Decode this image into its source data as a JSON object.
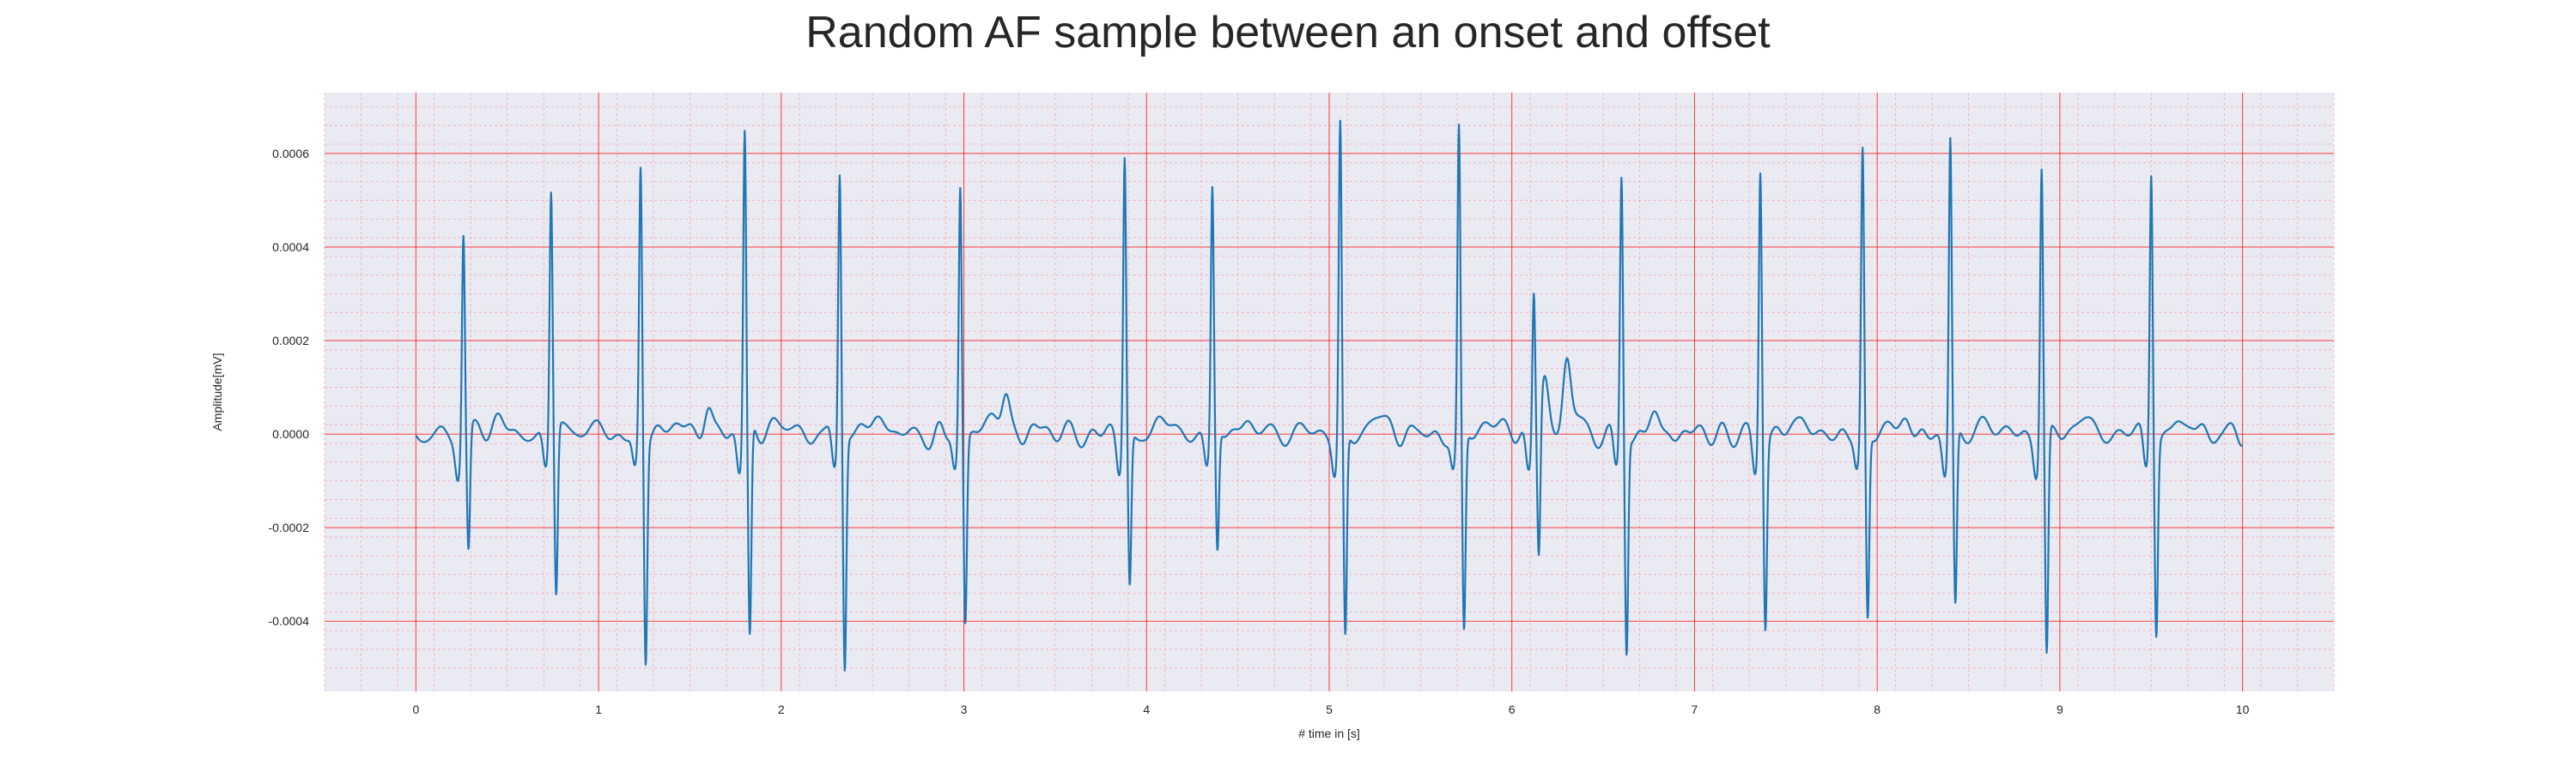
{
  "chart_data": {
    "type": "line",
    "title": "Random AF sample between an onset and offset",
    "xlabel": "# time in [s]",
    "ylabel": "Amplitude[mV]",
    "xlim": [
      -0.5,
      10.5
    ],
    "ylim": [
      -0.00055,
      0.00073
    ],
    "xticks": [
      0,
      1,
      2,
      3,
      4,
      5,
      6,
      7,
      8,
      9,
      10
    ],
    "xtick_labels": [
      "0",
      "1",
      "2",
      "3",
      "4",
      "5",
      "6",
      "7",
      "8",
      "9",
      "10"
    ],
    "yticks": [
      -0.0004,
      -0.0002,
      0.0,
      0.0002,
      0.0004,
      0.0006
    ],
    "ytick_labels": [
      "-0.0004",
      "-0.0002",
      "0.0000",
      "0.0002",
      "0.0004",
      "0.0006"
    ],
    "grid": true,
    "minor_grid": true,
    "colors": {
      "plot_background": "#eaeaf2",
      "major_grid": "#ff0000",
      "minor_grid": "#f4a8b4",
      "line": "#1f77b4"
    },
    "series": [
      {
        "values_note": "beats",
        "beats": [
          {
            "t": 0.26,
            "peak": 0.00044,
            "trough": -0.00026
          },
          {
            "t": 0.74,
            "peak": 0.00052,
            "trough": -0.00036
          },
          {
            "t": 1.23,
            "peak": 0.00057,
            "trough": -0.00048
          },
          {
            "t": 1.8,
            "peak": 0.00066,
            "trough": -0.00045
          },
          {
            "t": 2.32,
            "peak": 0.00058,
            "trough": -0.00049
          },
          {
            "t": 2.98,
            "peak": 0.00055,
            "trough": -0.00039
          },
          {
            "t": 3.88,
            "peak": 0.0006,
            "trough": -0.00033
          },
          {
            "t": 4.36,
            "peak": 0.00052,
            "trough": -0.00026
          },
          {
            "t": 5.06,
            "peak": 0.00067,
            "trough": -0.00044
          },
          {
            "t": 5.71,
            "peak": 0.00065,
            "trough": -0.00043
          },
          {
            "t": 6.12,
            "peak": 0.00032,
            "trough": -0.0003
          },
          {
            "t": 6.6,
            "peak": 0.00056,
            "trough": -0.00046
          },
          {
            "t": 7.36,
            "peak": 0.00059,
            "trough": -0.0004
          },
          {
            "t": 7.92,
            "peak": 0.0006,
            "trough": -0.0004
          },
          {
            "t": 8.4,
            "peak": 0.00064,
            "trough": -0.00038
          },
          {
            "t": 8.9,
            "peak": 0.00058,
            "trough": -0.00048
          },
          {
            "t": 9.5,
            "peak": 0.00058,
            "trough": -0.00041
          }
        ],
        "waves": [
          {
            "t": 3.23,
            "a": 9e-05
          },
          {
            "t": 6.3,
            "a": 0.00016
          },
          {
            "t": 6.18,
            "a": 0.0001
          },
          {
            "t": 1.6,
            "a": 6e-05
          }
        ],
        "t_start": 0.0,
        "t_end": 10.0
      }
    ]
  }
}
